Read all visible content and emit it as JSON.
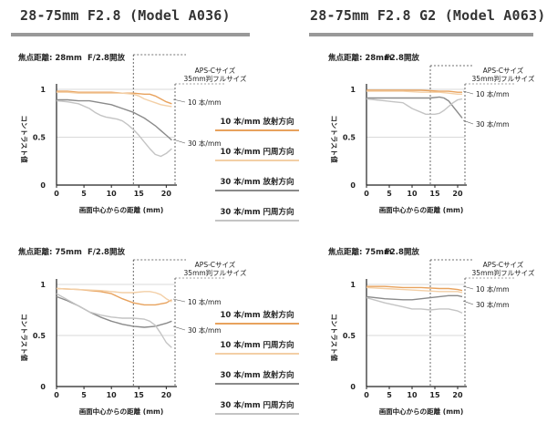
{
  "titles": {
    "left": "28-75mm F2.8 (Model A036)",
    "right": "28-75mm F2.8 G2 (Model A063)"
  },
  "colors": {
    "radial10": "#e8a25d",
    "tangential10": "#f3cfa6",
    "radial30": "#8a8a8a",
    "tangential30": "#c4c4c4",
    "title_rule": "#999999"
  },
  "legend": [
    {
      "label": "10 本/mm 放射方向",
      "color": "#e8a25d"
    },
    {
      "label": "10 本/mm 円周方向",
      "color": "#f3cfa6"
    },
    {
      "label": "30 本/mm 放射方向",
      "color": "#8a8a8a"
    },
    {
      "label": "30 本/mm 円周方向",
      "color": "#c4c4c4"
    }
  ],
  "chart_data": [
    {
      "type": "line",
      "id": "a036-28",
      "title": "焦点距離: 28mm",
      "aperture": "F/2.8開放",
      "xlabel": "画面中心からの距離 (mm)",
      "ylabel": "コントラスト値",
      "xlim": [
        0,
        21.6
      ],
      "ylim": [
        0,
        1
      ],
      "x_ticks": [
        0,
        5,
        10,
        15,
        20
      ],
      "y_ticks": [
        "0",
        "0.5",
        "1"
      ],
      "apsc_label": "APS-Cサイズ",
      "apsc_x": 14,
      "full_label": "35mm判フルサイズ",
      "full_x": 21.6,
      "annotations": [
        "10 本/mm",
        "30 本/mm"
      ],
      "series": [
        {
          "key": "radial10",
          "x": [
            0,
            2,
            4,
            6,
            8,
            10,
            12,
            14,
            16,
            17,
            18,
            19,
            20,
            21
          ],
          "y": [
            0.98,
            0.98,
            0.97,
            0.97,
            0.97,
            0.97,
            0.96,
            0.96,
            0.95,
            0.95,
            0.93,
            0.9,
            0.87,
            0.85
          ]
        },
        {
          "key": "tangential10",
          "x": [
            0,
            2,
            4,
            6,
            8,
            10,
            12,
            14,
            15,
            16,
            17,
            18,
            19,
            20,
            21
          ],
          "y": [
            0.97,
            0.97,
            0.96,
            0.96,
            0.96,
            0.96,
            0.96,
            0.95,
            0.93,
            0.9,
            0.88,
            0.86,
            0.84,
            0.83,
            0.82
          ]
        },
        {
          "key": "radial30",
          "x": [
            0,
            2,
            4,
            6,
            8,
            10,
            12,
            14,
            16,
            17,
            18,
            19,
            20,
            21
          ],
          "y": [
            0.89,
            0.89,
            0.88,
            0.88,
            0.86,
            0.84,
            0.8,
            0.76,
            0.7,
            0.66,
            0.62,
            0.57,
            0.52,
            0.47
          ]
        },
        {
          "key": "tangential30",
          "x": [
            0,
            2,
            4,
            6,
            7,
            8,
            9,
            10,
            11,
            12,
            13,
            14,
            15,
            16,
            17,
            18,
            19,
            20,
            21
          ],
          "y": [
            0.88,
            0.87,
            0.85,
            0.8,
            0.76,
            0.73,
            0.71,
            0.7,
            0.69,
            0.67,
            0.63,
            0.58,
            0.52,
            0.45,
            0.38,
            0.32,
            0.3,
            0.33,
            0.38
          ]
        }
      ]
    },
    {
      "type": "line",
      "id": "a063-28",
      "title": "焦点距離: 28mm",
      "aperture": "F2.8開放",
      "xlabel": "画面中心からの距離 (mm)",
      "ylabel": "コントラスト値",
      "xlim": [
        0,
        21.6
      ],
      "ylim": [
        0,
        1
      ],
      "x_ticks": [
        0,
        5,
        10,
        15,
        20
      ],
      "y_ticks": [
        "0",
        "0.5",
        "1"
      ],
      "apsc_label": "APS-Cサイズ",
      "apsc_x": 14,
      "full_label": "35mm判フルサイズ",
      "full_x": 21.6,
      "annotations": [
        "10 本/mm",
        "30 本/mm"
      ],
      "series": [
        {
          "key": "radial10",
          "x": [
            0,
            4,
            8,
            12,
            16,
            18,
            20,
            21
          ],
          "y": [
            0.99,
            0.99,
            0.99,
            0.99,
            0.98,
            0.98,
            0.97,
            0.97
          ]
        },
        {
          "key": "tangential10",
          "x": [
            0,
            4,
            8,
            12,
            16,
            18,
            20,
            21
          ],
          "y": [
            0.98,
            0.98,
            0.98,
            0.97,
            0.97,
            0.96,
            0.95,
            0.95
          ]
        },
        {
          "key": "radial30",
          "x": [
            0,
            2,
            4,
            6,
            8,
            10,
            12,
            14,
            16,
            17,
            18,
            19,
            20,
            21
          ],
          "y": [
            0.91,
            0.91,
            0.91,
            0.91,
            0.91,
            0.91,
            0.91,
            0.91,
            0.92,
            0.91,
            0.88,
            0.82,
            0.76,
            0.7
          ]
        },
        {
          "key": "tangential30",
          "x": [
            0,
            2,
            4,
            6,
            8,
            9,
            10,
            11,
            12,
            13,
            14,
            15,
            16,
            17,
            18,
            19,
            20,
            21
          ],
          "y": [
            0.9,
            0.89,
            0.88,
            0.87,
            0.86,
            0.83,
            0.8,
            0.78,
            0.76,
            0.74,
            0.74,
            0.74,
            0.75,
            0.78,
            0.82,
            0.86,
            0.89,
            0.9
          ]
        }
      ]
    },
    {
      "type": "line",
      "id": "a036-75",
      "title": "焦点距離: 75mm",
      "aperture": "F/2.8開放",
      "xlabel": "画面中心からの距離 (mm)",
      "ylabel": "コントラスト値",
      "xlim": [
        0,
        21.6
      ],
      "ylim": [
        0,
        1
      ],
      "x_ticks": [
        0,
        5,
        10,
        15,
        20
      ],
      "y_ticks": [
        "0",
        "0.5",
        "1"
      ],
      "apsc_label": "APS-Cサイズ",
      "apsc_x": 14,
      "full_label": "35mm判フルサイズ",
      "full_x": 21.6,
      "annotations": [
        "10 本/mm",
        "30 本/mm"
      ],
      "series": [
        {
          "key": "radial10",
          "x": [
            0,
            4,
            8,
            10,
            12,
            14,
            16,
            18,
            20,
            21
          ],
          "y": [
            0.96,
            0.95,
            0.93,
            0.91,
            0.86,
            0.82,
            0.8,
            0.8,
            0.82,
            0.85
          ]
        },
        {
          "key": "tangential10",
          "x": [
            0,
            4,
            8,
            10,
            12,
            14,
            16,
            17,
            18,
            19,
            20,
            21
          ],
          "y": [
            0.96,
            0.95,
            0.94,
            0.93,
            0.92,
            0.92,
            0.93,
            0.93,
            0.92,
            0.9,
            0.86,
            0.83
          ]
        },
        {
          "key": "radial30",
          "x": [
            0,
            2,
            4,
            6,
            8,
            10,
            12,
            14,
            16,
            18,
            20,
            21
          ],
          "y": [
            0.88,
            0.84,
            0.79,
            0.73,
            0.68,
            0.64,
            0.61,
            0.59,
            0.58,
            0.59,
            0.62,
            0.64
          ]
        },
        {
          "key": "tangential30",
          "x": [
            0,
            2,
            4,
            6,
            8,
            10,
            12,
            14,
            16,
            17,
            18,
            19,
            20,
            21
          ],
          "y": [
            0.91,
            0.85,
            0.79,
            0.73,
            0.7,
            0.68,
            0.67,
            0.67,
            0.66,
            0.64,
            0.6,
            0.52,
            0.43,
            0.38
          ]
        }
      ]
    },
    {
      "type": "line",
      "id": "a063-75",
      "title": "焦点距離: 75mm",
      "aperture": "F2.8開放",
      "xlabel": "画面中心からの距離 (mm)",
      "ylabel": "コントラスト値",
      "xlim": [
        0,
        21.6
      ],
      "ylim": [
        0,
        1
      ],
      "x_ticks": [
        0,
        5,
        10,
        15,
        20
      ],
      "y_ticks": [
        "0",
        "0.5",
        "1"
      ],
      "apsc_label": "APS-Cサイズ",
      "apsc_x": 14,
      "full_label": "35mm判フルサイズ",
      "full_x": 21.6,
      "annotations": [
        "10 本/mm",
        "30 本/mm"
      ],
      "series": [
        {
          "key": "radial10",
          "x": [
            0,
            4,
            8,
            12,
            16,
            18,
            20,
            21
          ],
          "y": [
            0.98,
            0.98,
            0.97,
            0.97,
            0.96,
            0.96,
            0.95,
            0.94
          ]
        },
        {
          "key": "tangential10",
          "x": [
            0,
            4,
            8,
            12,
            16,
            18,
            20,
            21
          ],
          "y": [
            0.97,
            0.96,
            0.95,
            0.94,
            0.93,
            0.93,
            0.93,
            0.92
          ]
        },
        {
          "key": "radial30",
          "x": [
            0,
            4,
            8,
            10,
            12,
            14,
            16,
            18,
            20,
            21
          ],
          "y": [
            0.88,
            0.86,
            0.85,
            0.85,
            0.86,
            0.87,
            0.88,
            0.89,
            0.89,
            0.88
          ]
        },
        {
          "key": "tangential30",
          "x": [
            0,
            4,
            8,
            10,
            12,
            14,
            16,
            18,
            20,
            21
          ],
          "y": [
            0.87,
            0.82,
            0.78,
            0.76,
            0.76,
            0.75,
            0.76,
            0.76,
            0.74,
            0.72
          ]
        }
      ]
    }
  ]
}
